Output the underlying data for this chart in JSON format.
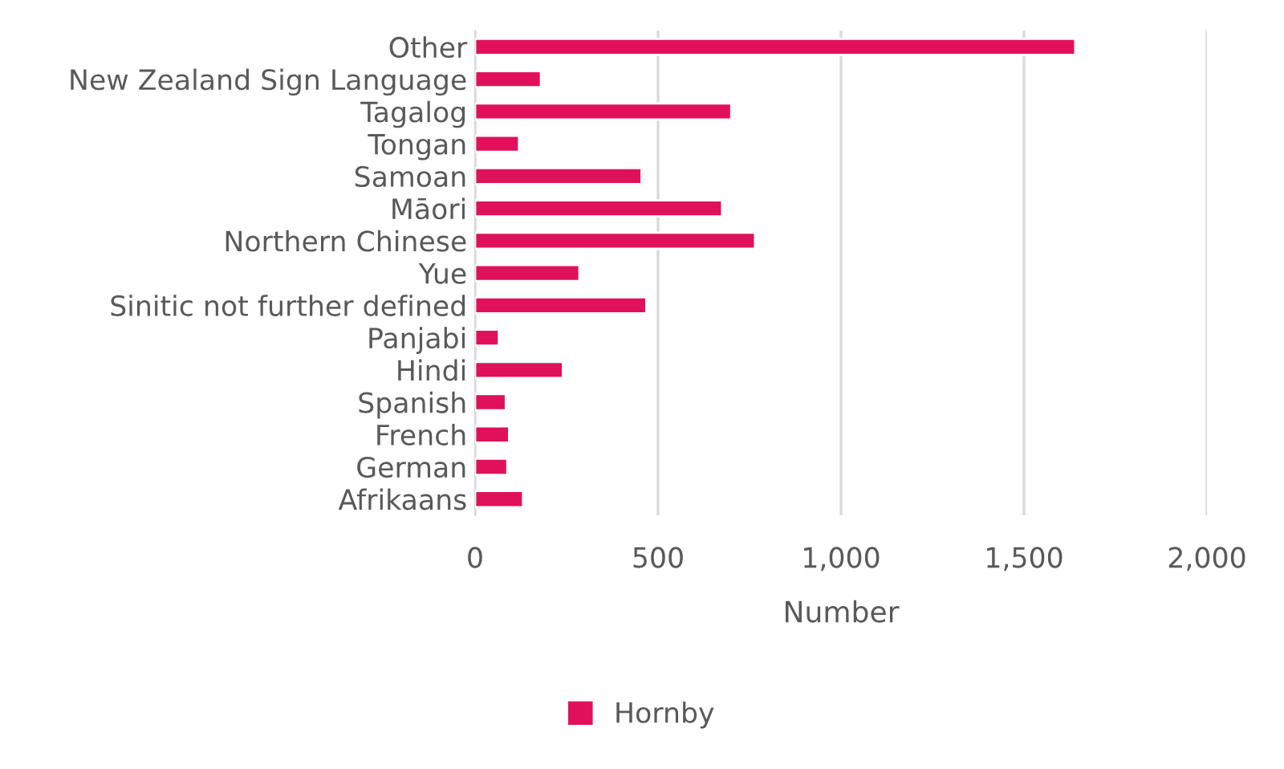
{
  "chart_data": {
    "type": "bar",
    "orientation": "horizontal",
    "xlabel": "Number",
    "categories": [
      "Other",
      "New Zealand Sign Language",
      "Tagalog",
      "Tongan",
      "Samoan",
      "Māori",
      "Northern Chinese",
      "Yue",
      "Sinitic not further defined",
      "Panjabi",
      "Hindi",
      "Spanish",
      "French",
      "German",
      "Afrikaans"
    ],
    "series": [
      {
        "name": "Hornby",
        "color": "#e0115a",
        "values": [
          1640,
          180,
          700,
          120,
          455,
          675,
          765,
          285,
          468,
          65,
          240,
          84,
          93,
          88,
          131
        ]
      }
    ],
    "xlim": [
      0,
      2000
    ],
    "xticks": [
      {
        "value": 0,
        "label": "0"
      },
      {
        "value": 500,
        "label": "500"
      },
      {
        "value": 1000,
        "label": "1,000"
      },
      {
        "value": 1500,
        "label": "1,500"
      },
      {
        "value": 2000,
        "label": "2,000"
      }
    ],
    "grid": "x",
    "legend": "bottom"
  }
}
